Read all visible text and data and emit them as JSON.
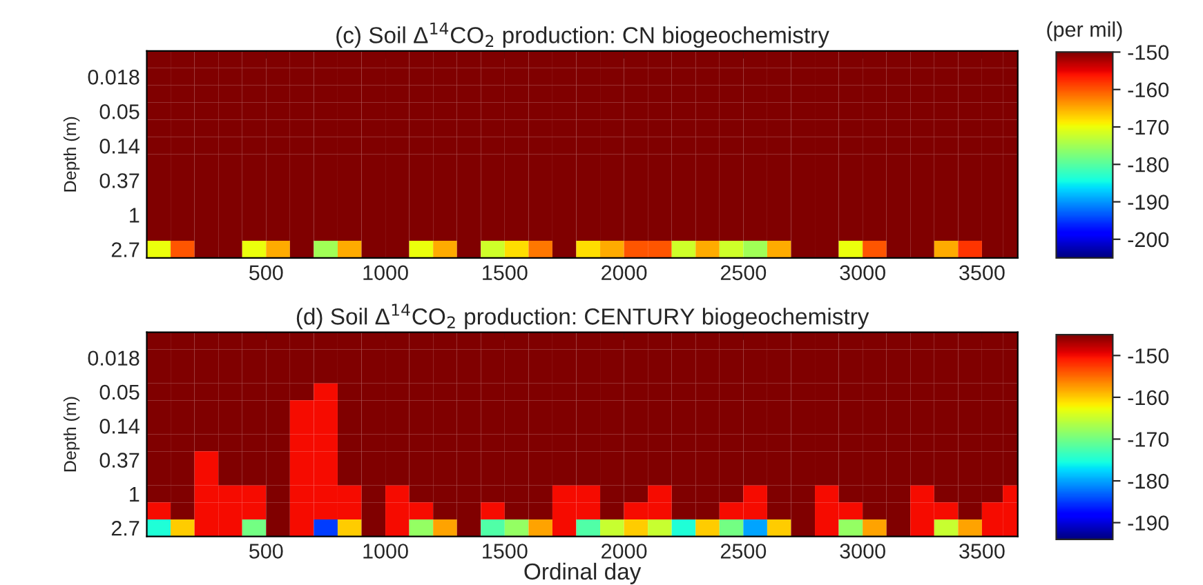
{
  "chart_data": [
    {
      "type": "heatmap",
      "title": "(c) Soil Δ$^{14}$CO$_{2}$ production: CN biogeochemistry",
      "ylabel": "Depth (m)",
      "clabel": "(per mil)",
      "x": [
        50,
        150,
        250,
        350,
        450,
        550,
        650,
        750,
        850,
        950,
        1050,
        1150,
        1250,
        1350,
        1450,
        1550,
        1650,
        1750,
        1850,
        1950,
        2050,
        2150,
        2250,
        2350,
        2450,
        2550,
        2650,
        2750,
        2850,
        2950,
        3050,
        3150,
        3250,
        3350,
        3450,
        3550,
        3625
      ],
      "xlim": [
        0,
        3650
      ],
      "xticks": [
        500,
        1000,
        1500,
        2000,
        2500,
        3000,
        3500
      ],
      "y_categories": [
        null,
        "0.018",
        null,
        "0.05",
        null,
        "0.14",
        null,
        "0.37",
        null,
        "1",
        null,
        "2.7"
      ],
      "clim": [
        -205,
        -150
      ],
      "cticks": [
        -150,
        -160,
        -170,
        -180,
        -190,
        -200
      ],
      "cells": [
        [
          -150,
          -150,
          -150,
          -150,
          -150,
          -150,
          -150,
          -150,
          -150,
          -150,
          -150,
          -150,
          -150,
          -150,
          -150,
          -150,
          -150,
          -150,
          -150,
          -150,
          -150,
          -150,
          -150,
          -150,
          -150,
          -150,
          -150,
          -150,
          -150,
          -150,
          -150,
          -150,
          -150,
          -150,
          -150,
          -150,
          -150
        ],
        [
          -150,
          -150,
          -150,
          -150,
          -150,
          -150,
          -150,
          -150,
          -150,
          -150,
          -150,
          -150,
          -150,
          -150,
          -150,
          -150,
          -150,
          -150,
          -150,
          -150,
          -150,
          -150,
          -150,
          -150,
          -150,
          -150,
          -150,
          -150,
          -150,
          -150,
          -150,
          -150,
          -150,
          -150,
          -150,
          -150,
          -150
        ],
        [
          -150,
          -150,
          -150,
          -150,
          -150,
          -150,
          -150,
          -150,
          -150,
          -150,
          -150,
          -150,
          -150,
          -150,
          -150,
          -150,
          -150,
          -150,
          -150,
          -150,
          -150,
          -150,
          -150,
          -150,
          -150,
          -150,
          -150,
          -150,
          -150,
          -150,
          -150,
          -150,
          -150,
          -150,
          -150,
          -150,
          -150
        ],
        [
          -150,
          -150,
          -150,
          -150,
          -150,
          -150,
          -150,
          -150,
          -150,
          -150,
          -150,
          -150,
          -150,
          -150,
          -150,
          -150,
          -150,
          -150,
          -150,
          -150,
          -150,
          -150,
          -150,
          -150,
          -150,
          -150,
          -150,
          -150,
          -150,
          -150,
          -150,
          -150,
          -150,
          -150,
          -150,
          -150,
          -150
        ],
        [
          -150,
          -150,
          -150,
          -150,
          -150,
          -150,
          -150,
          -150,
          -150,
          -150,
          -150,
          -150,
          -150,
          -150,
          -150,
          -150,
          -150,
          -150,
          -150,
          -150,
          -150,
          -150,
          -150,
          -150,
          -150,
          -150,
          -150,
          -150,
          -150,
          -150,
          -150,
          -150,
          -150,
          -150,
          -150,
          -150,
          -150
        ],
        [
          -150,
          -150,
          -150,
          -150,
          -150,
          -150,
          -150,
          -150,
          -150,
          -150,
          -150,
          -150,
          -150,
          -150,
          -150,
          -150,
          -150,
          -150,
          -150,
          -150,
          -150,
          -150,
          -150,
          -150,
          -150,
          -150,
          -150,
          -150,
          -150,
          -150,
          -150,
          -150,
          -150,
          -150,
          -150,
          -150,
          -150
        ],
        [
          -150,
          -150,
          -150,
          -150,
          -150,
          -150,
          -150,
          -150,
          -150,
          -150,
          -150,
          -150,
          -150,
          -150,
          -150,
          -150,
          -150,
          -150,
          -150,
          -150,
          -150,
          -150,
          -150,
          -150,
          -150,
          -150,
          -150,
          -150,
          -150,
          -150,
          -150,
          -150,
          -150,
          -150,
          -150,
          -150,
          -150
        ],
        [
          -150,
          -150,
          -150,
          -150,
          -150,
          -150,
          -150,
          -150,
          -150,
          -150,
          -150,
          -150,
          -150,
          -150,
          -150,
          -150,
          -150,
          -150,
          -150,
          -150,
          -150,
          -150,
          -150,
          -150,
          -150,
          -150,
          -150,
          -150,
          -150,
          -150,
          -150,
          -150,
          -150,
          -150,
          -150,
          -150,
          -150
        ],
        [
          -150,
          -150,
          -150,
          -150,
          -150,
          -150,
          -150,
          -150,
          -150,
          -150,
          -150,
          -150,
          -150,
          -150,
          -150,
          -150,
          -150,
          -150,
          -150,
          -150,
          -150,
          -150,
          -150,
          -150,
          -150,
          -150,
          -150,
          -150,
          -150,
          -150,
          -150,
          -150,
          -150,
          -150,
          -150,
          -150,
          -150
        ],
        [
          -150,
          -150,
          -150,
          -150,
          -150,
          -150,
          -150,
          -150,
          -150,
          -150,
          -150,
          -150,
          -150,
          -150,
          -150,
          -150,
          -150,
          -150,
          -150,
          -150,
          -150,
          -150,
          -150,
          -150,
          -150,
          -150,
          -150,
          -150,
          -150,
          -150,
          -150,
          -150,
          -150,
          -150,
          -150,
          -150,
          -150
        ],
        [
          -150,
          -150,
          -150,
          -150,
          -150,
          -150,
          -150,
          -150,
          -150,
          -150,
          -150,
          -150,
          -150,
          -150,
          -150,
          -150,
          -150,
          -150,
          -150,
          -150,
          -150,
          -150,
          -150,
          -150,
          -150,
          -150,
          -150,
          -150,
          -150,
          -150,
          -150,
          -150,
          -150,
          -150,
          -150,
          -150,
          -150
        ],
        [
          -170,
          -160,
          -150,
          -150,
          -170,
          -165,
          -150,
          -175,
          -165,
          -150,
          -150,
          -170,
          -165,
          -150,
          -172,
          -168,
          -162,
          -150,
          -168,
          -165,
          -160,
          -160,
          -172,
          -165,
          -172,
          -175,
          -165,
          -150,
          -150,
          -170,
          -160,
          -150,
          -150,
          -165,
          -158,
          -150,
          -150
        ]
      ]
    },
    {
      "type": "heatmap",
      "title": "(d) Soil Δ$^{14}$CO$_{2}$ production: CENTURY biogeochemistry",
      "xlabel": "Ordinal day",
      "ylabel": "Depth (m)",
      "x": [
        50,
        150,
        250,
        350,
        450,
        550,
        650,
        750,
        850,
        950,
        1050,
        1150,
        1250,
        1350,
        1450,
        1550,
        1650,
        1750,
        1850,
        1950,
        2050,
        2150,
        2250,
        2350,
        2450,
        2550,
        2650,
        2750,
        2850,
        2950,
        3050,
        3150,
        3250,
        3350,
        3450,
        3550,
        3625
      ],
      "xlim": [
        0,
        3650
      ],
      "xticks": [
        500,
        1000,
        1500,
        2000,
        2500,
        3000,
        3500
      ],
      "y_categories": [
        null,
        "0.018",
        null,
        "0.05",
        null,
        "0.14",
        null,
        "0.37",
        null,
        "1",
        null,
        "2.7"
      ],
      "clim": [
        -194,
        -145
      ],
      "cticks": [
        -150,
        -160,
        -170,
        -180,
        -190
      ],
      "cells": [
        [
          -145,
          -145,
          -145,
          -145,
          -145,
          -145,
          -145,
          -145,
          -145,
          -145,
          -145,
          -145,
          -145,
          -145,
          -145,
          -145,
          -145,
          -145,
          -145,
          -145,
          -145,
          -145,
          -145,
          -145,
          -145,
          -145,
          -145,
          -145,
          -145,
          -145,
          -145,
          -145,
          -145,
          -145,
          -145,
          -145,
          -145
        ],
        [
          -145,
          -145,
          -145,
          -145,
          -145,
          -145,
          -145,
          -145,
          -145,
          -145,
          -145,
          -145,
          -145,
          -145,
          -145,
          -145,
          -145,
          -145,
          -145,
          -145,
          -145,
          -145,
          -145,
          -145,
          -145,
          -145,
          -145,
          -145,
          -145,
          -145,
          -145,
          -145,
          -145,
          -145,
          -145,
          -145,
          -145
        ],
        [
          -145,
          -145,
          -145,
          -145,
          -145,
          -145,
          -145,
          -145,
          -145,
          -145,
          -145,
          -145,
          -145,
          -145,
          -145,
          -145,
          -145,
          -145,
          -145,
          -145,
          -145,
          -145,
          -145,
          -145,
          -145,
          -145,
          -145,
          -145,
          -145,
          -145,
          -145,
          -145,
          -145,
          -145,
          -145,
          -145,
          -145
        ],
        [
          -145,
          -145,
          -145,
          -145,
          -145,
          -145,
          -145,
          -150,
          -145,
          -145,
          -145,
          -145,
          -145,
          -145,
          -145,
          -145,
          -145,
          -145,
          -145,
          -145,
          -145,
          -145,
          -145,
          -145,
          -145,
          -145,
          -145,
          -145,
          -145,
          -145,
          -145,
          -145,
          -145,
          -145,
          -145,
          -145,
          -145
        ],
        [
          -145,
          -145,
          -145,
          -145,
          -145,
          -145,
          -150,
          -150,
          -145,
          -145,
          -145,
          -145,
          -145,
          -145,
          -145,
          -145,
          -145,
          -145,
          -145,
          -145,
          -145,
          -145,
          -145,
          -145,
          -145,
          -145,
          -145,
          -145,
          -145,
          -145,
          -145,
          -145,
          -145,
          -145,
          -145,
          -145,
          -145
        ],
        [
          -145,
          -145,
          -145,
          -145,
          -145,
          -145,
          -150,
          -150,
          -145,
          -145,
          -145,
          -145,
          -145,
          -145,
          -145,
          -145,
          -145,
          -145,
          -145,
          -145,
          -145,
          -145,
          -145,
          -145,
          -145,
          -145,
          -145,
          -145,
          -145,
          -145,
          -145,
          -145,
          -145,
          -145,
          -145,
          -145,
          -145
        ],
        [
          -145,
          -145,
          -145,
          -145,
          -145,
          -145,
          -150,
          -150,
          -145,
          -145,
          -145,
          -145,
          -145,
          -145,
          -145,
          -145,
          -145,
          -145,
          -145,
          -145,
          -145,
          -145,
          -145,
          -145,
          -145,
          -145,
          -145,
          -145,
          -145,
          -145,
          -145,
          -145,
          -145,
          -145,
          -145,
          -145,
          -145
        ],
        [
          -145,
          -145,
          -150,
          -145,
          -145,
          -145,
          -150,
          -150,
          -145,
          -145,
          -145,
          -145,
          -145,
          -145,
          -145,
          -145,
          -145,
          -145,
          -145,
          -145,
          -145,
          -145,
          -145,
          -145,
          -145,
          -145,
          -145,
          -145,
          -145,
          -145,
          -145,
          -145,
          -145,
          -145,
          -145,
          -145,
          -145
        ],
        [
          -145,
          -145,
          -150,
          -145,
          -145,
          -145,
          -150,
          -150,
          -145,
          -145,
          -145,
          -145,
          -145,
          -145,
          -145,
          -145,
          -145,
          -145,
          -145,
          -145,
          -145,
          -145,
          -145,
          -145,
          -145,
          -145,
          -145,
          -145,
          -145,
          -145,
          -145,
          -145,
          -145,
          -145,
          -145,
          -145,
          -145
        ],
        [
          -145,
          -145,
          -150,
          -150,
          -150,
          -145,
          -150,
          -150,
          -150,
          -145,
          -150,
          -145,
          -145,
          -145,
          -145,
          -145,
          -145,
          -150,
          -150,
          -145,
          -145,
          -150,
          -145,
          -145,
          -145,
          -150,
          -145,
          -145,
          -150,
          -145,
          -145,
          -145,
          -150,
          -145,
          -145,
          -145,
          -150
        ],
        [
          -150,
          -145,
          -150,
          -150,
          -150,
          -145,
          -150,
          -150,
          -150,
          -145,
          -150,
          -150,
          -145,
          -145,
          -150,
          -145,
          -145,
          -150,
          -150,
          -145,
          -150,
          -150,
          -145,
          -145,
          -150,
          -150,
          -145,
          -145,
          -150,
          -150,
          -145,
          -145,
          -150,
          -150,
          -145,
          -150,
          -150
        ],
        [
          -175,
          -160,
          -150,
          -150,
          -170,
          -145,
          -150,
          -185,
          -160,
          -145,
          -150,
          -168,
          -158,
          -145,
          -172,
          -168,
          -158,
          -150,
          -172,
          -165,
          -160,
          -165,
          -175,
          -160,
          -170,
          -180,
          -160,
          -145,
          -150,
          -168,
          -158,
          -145,
          -150,
          -165,
          -158,
          -150,
          -150
        ]
      ]
    }
  ]
}
